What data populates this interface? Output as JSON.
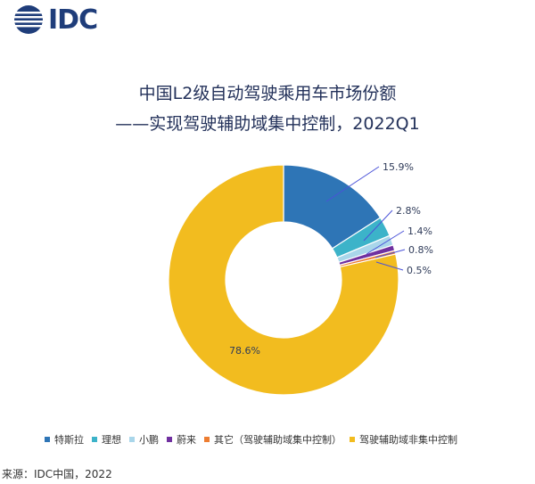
{
  "header": {
    "logo_text": "IDC"
  },
  "chart_data": {
    "type": "pie",
    "title_line1": "中国L2级自动驾驶乘用车市场份额",
    "title_line2": "——实现驾驶辅助域集中控制，2022Q1",
    "series": [
      {
        "name": "特斯拉",
        "value": 15.9,
        "label": "15.9%",
        "color": "#2e75b6"
      },
      {
        "name": "理想",
        "value": 2.8,
        "label": "2.8%",
        "color": "#3cb3c9"
      },
      {
        "name": "小鹏",
        "value": 1.4,
        "label": "1.4%",
        "color": "#a9d6ea"
      },
      {
        "name": "蔚来",
        "value": 0.8,
        "label": "0.8%",
        "color": "#7030a0"
      },
      {
        "name": "其它（驾驶辅助域集中控制）",
        "value": 0.5,
        "label": "0.5%",
        "color": "#ed7d31"
      },
      {
        "name": "驾驶辅助域非集中控制",
        "value": 78.6,
        "label": "78.6%",
        "color": "#f2bc1f"
      }
    ],
    "legend_position": "bottom",
    "donut": true
  },
  "footer": {
    "source": "来源：IDC中国，2022"
  }
}
